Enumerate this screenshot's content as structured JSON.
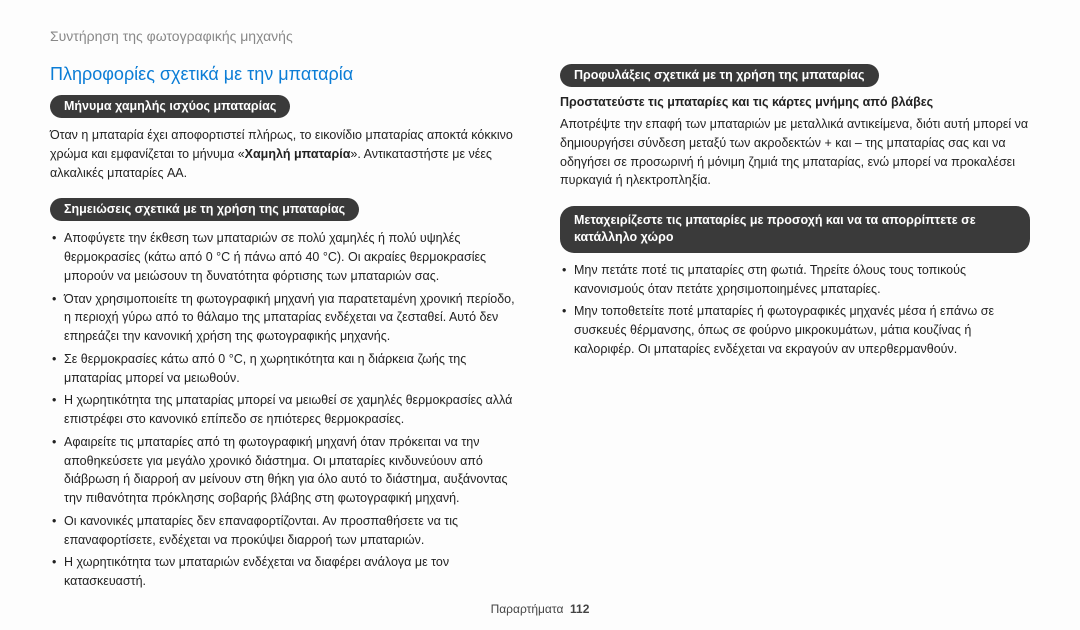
{
  "header": {
    "breadcrumb": "Συντήρηση της φωτογραφικής μηχανής"
  },
  "left": {
    "title": "Πληροφορίες σχετικά με την μπαταρία",
    "pill1": "Μήνυμα χαμηλής ισχύος μπαταρίας",
    "para1_a": "Όταν η μπαταρία έχει αποφορτιστεί πλήρως, το εικονίδιο μπαταρίας αποκτά κόκκινο χρώμα και εμφανίζεται το μήνυμα «",
    "para1_b": "Χαμηλή μπαταρία",
    "para1_c": "». Αντικαταστήστε με νέες αλκαλικές μπαταρίες AA.",
    "pill2": "Σημειώσεις σχετικά με τη χρήση της μπαταρίας",
    "bullets": [
      "Αποφύγετε την έκθεση των μπαταριών σε πολύ χαμηλές ή πολύ υψηλές θερμοκρασίες (κάτω από 0 °C ή πάνω από 40 °C). Οι ακραίες θερμοκρασίες μπορούν να μειώσουν τη δυνατότητα φόρτισης των μπαταριών σας.",
      "Όταν χρησιμοποιείτε τη φωτογραφική μηχανή για παρατεταμένη χρονική περίοδο, η περιοχή γύρω από το θάλαμο της μπαταρίας ενδέχεται να ζεσταθεί. Αυτό δεν επηρεάζει την κανονική χρήση της φωτογραφικής μηχανής.",
      "Σε θερμοκρασίες κάτω από 0 °C, η χωρητικότητα και η διάρκεια ζωής της μπαταρίας μπορεί να μειωθούν.",
      "Η χωρητικότητα της μπαταρίας μπορεί να μειωθεί σε χαμηλές θερμοκρασίες αλλά επιστρέφει στο κανονικό επίπεδο σε ηπιότερες θερμοκρασίες.",
      "Αφαιρείτε τις μπαταρίες από τη φωτογραφική μηχανή όταν πρόκειται να την αποθηκεύσετε για μεγάλο χρονικό διάστημα. Οι μπαταρίες κινδυνεύουν από διάβρωση ή διαρροή αν μείνουν στη θήκη για όλο αυτό το διάστημα, αυξάνοντας την πιθανότητα πρόκλησης σοβαρής βλάβης στη φωτογραφική μηχανή.",
      "Οι κανονικές μπαταρίες δεν επαναφορτίζονται. Αν προσπαθήσετε να τις επαναφορτίσετε, ενδέχεται να προκύψει διαρροή των μπαταριών.",
      "Η χωρητικότητα των μπαταριών ενδέχεται να διαφέρει ανάλογα με τον κατασκευαστή."
    ]
  },
  "right": {
    "pill1": "Προφυλάξεις σχετικά με τη χρήση της μπαταρίας",
    "sub1": "Προστατεύστε τις μπαταρίες και τις κάρτες μνήμης από βλάβες",
    "para1": "Αποτρέψτε την επαφή των μπαταριών με μεταλλικά αντικείμενα, διότι αυτή μπορεί να δημιουργήσει σύνδεση μεταξύ των ακροδεκτών + και – της μπαταρίας σας και να οδηγήσει σε προσωρινή ή μόνιμη ζημιά της μπαταρίας, ενώ μπορεί να προκαλέσει πυρκαγιά ή ηλεκτροπληξία.",
    "pill2": "Μεταχειρίζεστε τις μπαταρίες με προσοχή και να τα απορρίπτετε σε κατάλληλο χώρο",
    "bullets": [
      "Μην πετάτε ποτέ τις μπαταρίες στη φωτιά. Τηρείτε όλους τους τοπικούς κανονισμούς όταν πετάτε χρησιμοποιημένες μπαταρίες.",
      "Μην τοποθετείτε ποτέ μπαταρίες ή φωτογραφικές μηχανές μέσα ή επάνω σε συσκευές θέρμανσης, όπως σε φούρνο μικροκυμάτων, μάτια κουζίνας ή καλοριφέρ. Οι μπαταρίες ενδέχεται να εκραγούν αν υπερθερμανθούν."
    ]
  },
  "footer": {
    "label": "Παραρτήματα",
    "page": "112"
  }
}
